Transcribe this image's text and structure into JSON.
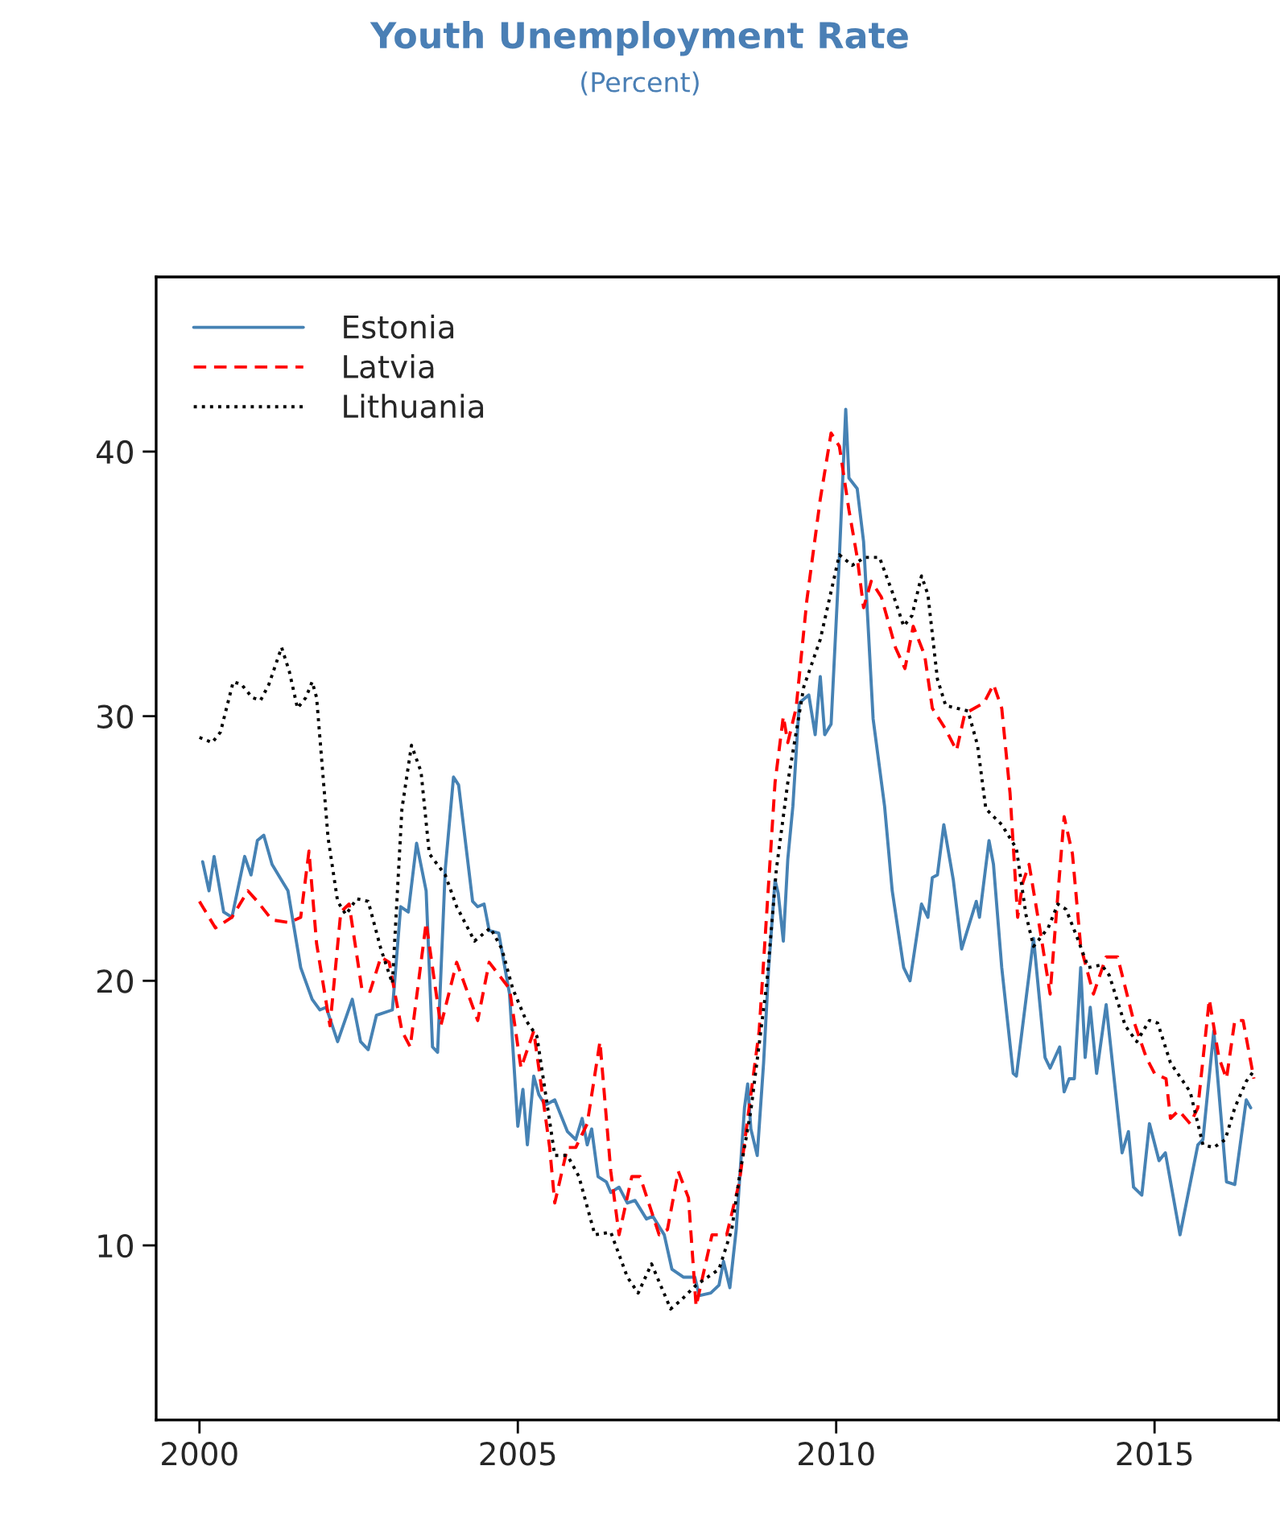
{
  "chart_data": {
    "type": "line",
    "title": "Youth Unemployment Rate",
    "subtitle": "(Percent)",
    "xlim": [
      1999.32,
      2016.95
    ],
    "xticks": [
      2000,
      2005,
      2010,
      2015
    ],
    "ylim": [
      3.4,
      46.6
    ],
    "yticks": [
      10,
      20,
      30,
      40
    ],
    "grid": false,
    "legend": "top left",
    "marker": "none",
    "series": [
      {
        "name": "Estonia",
        "color": "#4682b4",
        "line_style": "solid",
        "x": [
          2000.05,
          2000.15,
          2000.23,
          2000.38,
          2000.51,
          2000.71,
          2000.81,
          2000.91,
          2001.01,
          2001.14,
          2001.29,
          2001.39,
          2001.59,
          2001.77,
          2001.89,
          2001.99,
          2002.17,
          2002.4,
          2002.53,
          2002.65,
          2002.78,
          2003.03,
          2003.16,
          2003.28,
          2003.41,
          2003.56,
          2003.66,
          2003.74,
          2003.86,
          2003.99,
          2004.07,
          2004.29,
          2004.37,
          2004.47,
          2004.55,
          2004.7,
          2004.87,
          2005.0,
          2005.08,
          2005.15,
          2005.25,
          2005.33,
          2005.43,
          2005.58,
          2005.78,
          2005.91,
          2006.01,
          2006.09,
          2006.16,
          2006.26,
          2006.39,
          2006.46,
          2006.59,
          2006.72,
          2006.84,
          2007.02,
          2007.12,
          2007.3,
          2007.42,
          2007.6,
          2007.78,
          2007.85,
          2008.03,
          2008.16,
          2008.23,
          2008.33,
          2008.43,
          2008.56,
          2008.61,
          2008.66,
          2008.76,
          2008.86,
          2008.94,
          2009.04,
          2009.09,
          2009.17,
          2009.24,
          2009.32,
          2009.42,
          2009.57,
          2009.67,
          2009.75,
          2009.82,
          2009.92,
          2010.05,
          2010.15,
          2010.2,
          2010.33,
          2010.43,
          2010.58,
          2010.76,
          2010.88,
          2011.06,
          2011.16,
          2011.34,
          2011.44,
          2011.51,
          2011.59,
          2011.69,
          2011.84,
          2011.97,
          2012.2,
          2012.25,
          2012.4,
          2012.47,
          2012.6,
          2012.78,
          2012.83,
          2013.1,
          2013.28,
          2013.36,
          2013.51,
          2013.58,
          2013.66,
          2013.74,
          2013.84,
          2013.91,
          2013.99,
          2014.09,
          2014.24,
          2014.49,
          2014.59,
          2014.67,
          2014.8,
          2014.92,
          2015.07,
          2015.17,
          2015.4,
          2015.68,
          2015.76,
          2015.93,
          2016.13,
          2016.26,
          2016.44,
          2016.51
        ],
        "values": [
          24.5,
          23.4,
          24.7,
          22.6,
          22.4,
          24.7,
          24.0,
          25.3,
          25.5,
          24.4,
          23.8,
          23.4,
          20.5,
          19.3,
          18.9,
          19.0,
          17.7,
          19.3,
          17.7,
          17.4,
          18.7,
          18.9,
          22.8,
          22.6,
          25.2,
          23.4,
          17.5,
          17.3,
          24.2,
          27.7,
          27.4,
          23.0,
          22.8,
          22.9,
          21.9,
          21.8,
          19.5,
          14.5,
          15.9,
          13.8,
          16.4,
          15.7,
          15.3,
          15.5,
          14.3,
          14.0,
          14.8,
          13.8,
          14.4,
          12.6,
          12.4,
          12.0,
          12.2,
          11.6,
          11.7,
          11.0,
          11.1,
          10.4,
          9.1,
          8.8,
          8.8,
          8.1,
          8.2,
          8.5,
          9.4,
          8.4,
          10.6,
          15.2,
          16.1,
          14.4,
          13.4,
          16.9,
          20.5,
          23.8,
          23.3,
          21.5,
          24.6,
          26.6,
          30.5,
          30.8,
          29.3,
          31.5,
          29.3,
          29.7,
          36.0,
          41.6,
          39.0,
          38.6,
          36.6,
          29.9,
          26.6,
          23.4,
          20.5,
          20.0,
          22.9,
          22.4,
          23.9,
          24.0,
          25.9,
          23.8,
          21.2,
          23.0,
          22.4,
          25.3,
          24.4,
          20.5,
          16.5,
          16.4,
          21.6,
          17.1,
          16.7,
          17.5,
          15.8,
          16.3,
          16.3,
          20.5,
          17.1,
          19.0,
          16.5,
          19.1,
          13.5,
          14.3,
          12.2,
          11.9,
          14.6,
          13.2,
          13.5,
          10.4,
          13.8,
          14.0,
          18.1,
          12.4,
          12.3,
          15.5,
          15.2
        ]
      },
      {
        "name": "Latvia",
        "color": "#ff0000",
        "line_style": "dashed",
        "x": [
          2000.0,
          2000.25,
          2000.51,
          2000.76,
          2000.91,
          2001.14,
          2001.41,
          2001.59,
          2001.72,
          2001.84,
          2002.05,
          2002.22,
          2002.35,
          2002.55,
          2002.68,
          2002.85,
          2002.98,
          2003.18,
          2003.31,
          2003.56,
          2003.79,
          2004.04,
          2004.37,
          2004.55,
          2004.87,
          2005.05,
          2005.25,
          2005.5,
          2005.58,
          2005.78,
          2005.91,
          2006.09,
          2006.29,
          2006.46,
          2006.59,
          2006.79,
          2006.92,
          2007.22,
          2007.35,
          2007.52,
          2007.68,
          2007.8,
          2008.05,
          2008.28,
          2008.48,
          2008.66,
          2008.79,
          2008.91,
          2009.04,
          2009.17,
          2009.24,
          2009.37,
          2009.54,
          2009.75,
          2009.92,
          2010.05,
          2010.2,
          2010.33,
          2010.43,
          2010.55,
          2010.71,
          2010.93,
          2011.08,
          2011.21,
          2011.39,
          2011.51,
          2011.72,
          2011.89,
          2012.02,
          2012.32,
          2012.47,
          2012.6,
          2012.73,
          2012.85,
          2012.93,
          2013.03,
          2013.21,
          2013.36,
          2013.46,
          2013.58,
          2013.71,
          2013.84,
          2014.04,
          2014.24,
          2014.42,
          2014.67,
          2014.87,
          2015.0,
          2015.18,
          2015.25,
          2015.38,
          2015.56,
          2015.68,
          2015.86,
          2016.01,
          2016.13,
          2016.26,
          2016.39,
          2016.56
        ],
        "values": [
          23.0,
          22.0,
          22.4,
          23.4,
          23.0,
          22.3,
          22.2,
          22.4,
          24.9,
          21.4,
          18.3,
          22.6,
          22.9,
          19.7,
          19.6,
          20.9,
          20.7,
          18.1,
          17.5,
          22.2,
          18.3,
          20.7,
          18.5,
          20.7,
          19.7,
          16.7,
          18.1,
          13.7,
          11.6,
          13.7,
          13.7,
          14.6,
          17.7,
          12.8,
          10.4,
          12.6,
          12.6,
          10.4,
          10.6,
          12.8,
          11.8,
          7.7,
          10.4,
          10.4,
          12.4,
          15.7,
          18.1,
          22.6,
          27.5,
          30.0,
          29.0,
          30.3,
          34.4,
          38.2,
          40.7,
          40.2,
          37.8,
          36.0,
          34.1,
          35.1,
          34.5,
          32.6,
          31.8,
          33.4,
          32.3,
          30.3,
          29.5,
          28.7,
          30.1,
          30.5,
          31.2,
          30.3,
          27.1,
          22.4,
          23.7,
          24.4,
          21.8,
          19.5,
          22.6,
          26.2,
          24.8,
          21.3,
          19.5,
          20.9,
          20.9,
          18.5,
          17.1,
          16.5,
          16.3,
          14.8,
          15.1,
          14.6,
          15.2,
          19.3,
          17.1,
          16.3,
          18.5,
          18.5,
          16.3
        ]
      },
      {
        "name": "Lithuania",
        "color": "#000000",
        "line_style": "dotted",
        "x": [
          2000.0,
          2000.2,
          2000.33,
          2000.53,
          2000.66,
          2000.83,
          2000.96,
          2001.09,
          2001.29,
          2001.41,
          2001.54,
          2001.67,
          2001.77,
          2001.84,
          2002.02,
          2002.17,
          2002.3,
          2002.47,
          2002.65,
          2002.85,
          2003.03,
          2003.18,
          2003.33,
          2003.48,
          2003.61,
          2003.86,
          2004.04,
          2004.32,
          2004.57,
          2004.75,
          2004.92,
          2005.13,
          2005.3,
          2005.45,
          2005.58,
          2005.78,
          2005.96,
          2006.21,
          2006.46,
          2006.72,
          2006.89,
          2007.1,
          2007.4,
          2007.55,
          2007.8,
          2008.16,
          2008.36,
          2008.48,
          2008.66,
          2008.91,
          2009.06,
          2009.24,
          2009.49,
          2009.75,
          2010.05,
          2010.25,
          2010.45,
          2010.68,
          2010.88,
          2011.06,
          2011.19,
          2011.34,
          2011.44,
          2011.59,
          2011.72,
          2012.07,
          2012.22,
          2012.35,
          2012.6,
          2012.83,
          2012.98,
          2013.1,
          2013.33,
          2013.48,
          2013.61,
          2013.79,
          2013.96,
          2014.17,
          2014.29,
          2014.54,
          2014.72,
          2014.92,
          2015.05,
          2015.25,
          2015.56,
          2015.76,
          2015.93,
          2016.11,
          2016.26,
          2016.44,
          2016.56
        ],
        "values": [
          29.2,
          29.0,
          29.4,
          31.3,
          31.2,
          30.7,
          30.6,
          31.2,
          32.6,
          31.7,
          30.3,
          30.7,
          31.3,
          30.7,
          25.4,
          23.0,
          22.5,
          23.1,
          23.0,
          21.2,
          19.9,
          26.5,
          28.9,
          27.9,
          24.8,
          24.0,
          22.8,
          21.5,
          22.0,
          21.2,
          19.7,
          18.5,
          17.9,
          15.5,
          13.4,
          13.4,
          12.6,
          10.4,
          10.5,
          8.8,
          8.2,
          9.3,
          7.6,
          7.9,
          8.5,
          9.1,
          10.6,
          12.6,
          15.1,
          19.9,
          24.2,
          27.5,
          31.1,
          32.9,
          36.1,
          35.7,
          36.0,
          36.0,
          34.7,
          33.4,
          33.8,
          35.3,
          34.6,
          31.4,
          30.4,
          30.2,
          28.9,
          26.5,
          25.9,
          25.0,
          22.5,
          21.3,
          22.0,
          22.9,
          22.7,
          21.6,
          20.5,
          20.6,
          20.2,
          18.3,
          17.7,
          18.5,
          18.4,
          16.9,
          15.8,
          13.8,
          13.7,
          14.0,
          15.2,
          16.2,
          16.6
        ]
      }
    ]
  }
}
